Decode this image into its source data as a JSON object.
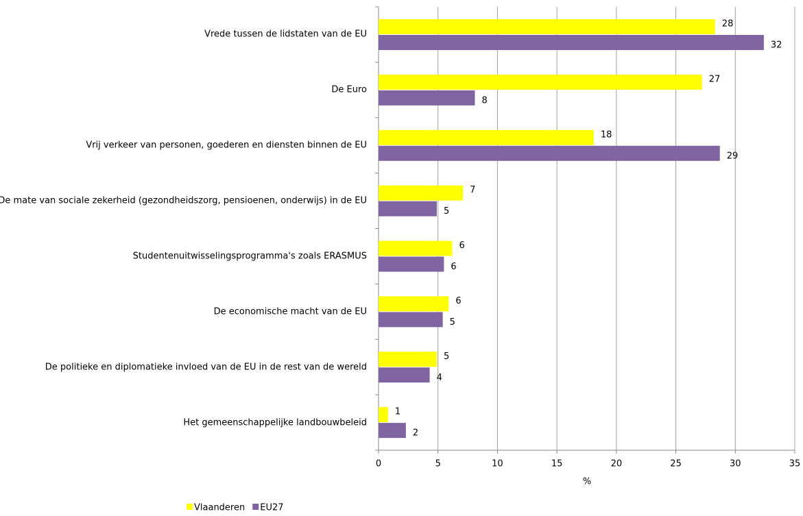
{
  "chart_data": {
    "type": "hbar",
    "categories": [
      "Vrede tussen de lidstaten van de EU",
      "De Euro",
      "Vrij verkeer van personen, goederen en diensten binnen de EU",
      "De mate van sociale zekerheid (gezondheidszorg, pensioenen, onderwijs) in de EU",
      "Studentenuitwisselingsprogramma's zoals ERASMUS",
      "De economische macht van de EU",
      "De politieke en diplomatieke invloed van de EU in de rest van de wereld",
      "Het gemeenschappelijke landbouwbeleid"
    ],
    "series": [
      {
        "name": "Vlaanderen",
        "color": "#ffff00",
        "values": [
          28.3,
          27.2,
          18.1,
          7.1,
          6.2,
          5.9,
          4.9,
          0.8
        ],
        "value_labels": [
          "28",
          "27",
          "18",
          "7",
          "6",
          "6",
          "5",
          "1"
        ]
      },
      {
        "name": "EU27",
        "color": "#8064a2",
        "values": [
          32.4,
          8.1,
          28.7,
          4.9,
          5.5,
          5.4,
          4.3,
          2.3
        ],
        "value_labels": [
          "32",
          "8",
          "29",
          "5",
          "6",
          "5",
          "4",
          "2"
        ]
      }
    ],
    "x_label": "%",
    "xlim": [
      0,
      35
    ],
    "xticks": [
      0,
      5,
      10,
      15,
      20,
      25,
      30,
      35
    ],
    "grid": true,
    "legend": "bottom"
  }
}
